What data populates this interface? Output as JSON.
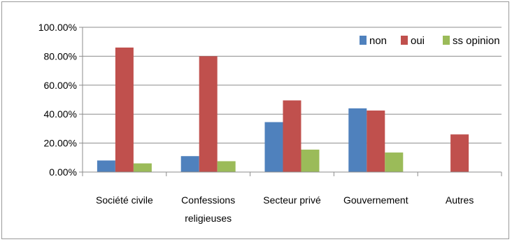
{
  "chart_data": {
    "type": "bar",
    "categories": [
      [
        "Société civile"
      ],
      [
        "Confessions",
        "religieuses"
      ],
      [
        "Secteur privé"
      ],
      [
        "Gouvernement"
      ],
      [
        "Autres"
      ]
    ],
    "series": [
      {
        "name": "non",
        "color": "#4f81bd",
        "values": [
          8,
          11,
          34.5,
          44,
          0
        ]
      },
      {
        "name": "oui",
        "color": "#c0504d",
        "values": [
          86,
          80,
          49.5,
          42.5,
          26
        ]
      },
      {
        "name": "ss opinion",
        "color": "#9bbb59",
        "values": [
          6,
          7.5,
          15.5,
          13.5,
          0
        ]
      }
    ],
    "yticks": [
      "0.00%",
      "20.00%",
      "40.00%",
      "60.00%",
      "80.00%",
      "100.00%"
    ],
    "ylim": [
      0,
      100
    ],
    "grid": true,
    "legend": "top-right",
    "title": "",
    "xlabel": "",
    "ylabel": ""
  }
}
